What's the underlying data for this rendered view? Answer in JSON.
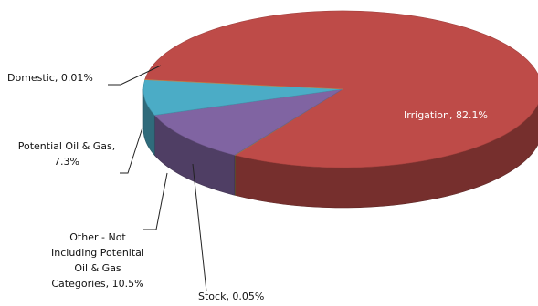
{
  "chart_data": {
    "type": "pie",
    "style": "3d",
    "title": "",
    "legend": "none",
    "slices": [
      {
        "name": "Irrigation",
        "value": 82.1,
        "data_label": "Irrigation, 82.1%",
        "color": "#BE4B48"
      },
      {
        "name": "Stock",
        "value": 0.05,
        "data_label": "Stock, 0.05%",
        "color": "#9BBB59"
      },
      {
        "name": "Other - Not Including Potenital Oil & Gas Categories",
        "value": 10.5,
        "data_label": [
          "Other - Not",
          "Including Potenital",
          "Oil & Gas",
          "Categories, 10.5%"
        ],
        "color": "#8064A2"
      },
      {
        "name": "Potential Oil & Gas",
        "value": 7.3,
        "data_label": [
          "Potential Oil & Gas,",
          "7.3%"
        ],
        "color": "#4BACC6"
      },
      {
        "name": "Domestic",
        "value": 0.01,
        "data_label": "Domestic, 0.01%",
        "color": "#F79646"
      }
    ]
  }
}
